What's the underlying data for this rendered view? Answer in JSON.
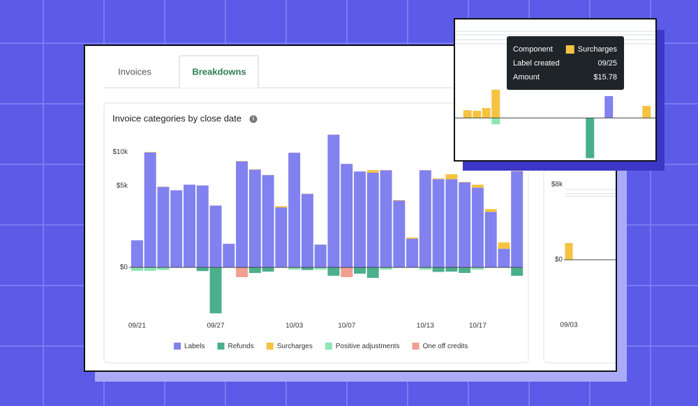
{
  "tabs": [
    "Invoices",
    "Breakdowns"
  ],
  "chart_data": [
    {
      "type": "bar",
      "title": "Invoice categories by close date",
      "stacked": true,
      "yscale": "sqrt",
      "categories": [
        "09/21",
        null,
        null,
        null,
        null,
        null,
        "09/27",
        null,
        null,
        null,
        null,
        null,
        "10/03",
        null,
        null,
        null,
        "10/07",
        null,
        null,
        null,
        null,
        null,
        "10/13",
        null,
        null,
        null,
        "10/17",
        null,
        null,
        null
      ],
      "series": [
        {
          "name": "Labels",
          "color": "#8181f0",
          "values": [
            552,
            9920,
            4871,
            4461,
            5140,
            5037,
            2870,
            420,
            8448,
            7179,
            6400,
            2692,
            9871,
            4062,
            390,
            13211,
            8040,
            6907,
            6738,
            7081,
            3363,
            619,
            7081,
            5841,
            5845,
            5438,
            4768,
            2315,
            261,
            6966
          ]
        },
        {
          "name": "Refunds",
          "color": "#4caf8c",
          "values": [
            null,
            null,
            null,
            null,
            null,
            -10,
            -1580,
            null,
            null,
            -23,
            -13,
            null,
            null,
            -5,
            null,
            -52,
            null,
            -29,
            -82,
            null,
            null,
            null,
            null,
            -15,
            -13,
            -23,
            null,
            null,
            null,
            -52
          ]
        },
        {
          "name": "Surcharges",
          "color": "#f5c342",
          "values": [
            null,
            80,
            29,
            9,
            null,
            13,
            5,
            null,
            52,
            36,
            20,
            118,
            9,
            18,
            5,
            29,
            20,
            3,
            372,
            29,
            52,
            52,
            29,
            105,
            671,
            52,
            372,
            245,
            209,
            44
          ]
        },
        {
          "name": "Positive adjustments",
          "color": "#8ee6b5",
          "values": [
            -9,
            -9,
            -5,
            null,
            null,
            null,
            null,
            null,
            null,
            null,
            null,
            null,
            -4,
            null,
            -4,
            null,
            null,
            null,
            null,
            -4,
            null,
            null,
            -4,
            null,
            null,
            null,
            -4,
            null,
            null,
            null
          ]
        },
        {
          "name": "One off credits",
          "color": "#f0a090",
          "values": [
            null,
            null,
            null,
            null,
            null,
            null,
            null,
            null,
            -71,
            null,
            null,
            null,
            null,
            null,
            null,
            null,
            -71,
            null,
            null,
            null,
            null,
            null,
            null,
            null,
            null,
            null,
            null,
            null,
            null,
            null
          ]
        }
      ],
      "ylim": [
        -2100,
        13700
      ],
      "yticks": [
        {
          "value": 0,
          "label": "$0"
        },
        {
          "value": 5000,
          "label": "$5k"
        },
        {
          "value": 10000,
          "label": "$10k"
        }
      ]
    },
    {
      "type": "bar",
      "stacked": true,
      "categories": [
        "09/03"
      ],
      "series": [
        {
          "name": "Surcharges",
          "color": "#f5c342",
          "values": [
            1780
          ]
        }
      ],
      "ylim": [
        -1000,
        8000
      ],
      "yticks": [
        {
          "value": 0,
          "label": "$0"
        },
        {
          "value": 8000,
          "label": "$8k"
        }
      ]
    },
    {
      "type": "bar",
      "stacked": true,
      "categories": [
        null,
        null,
        null,
        null,
        null,
        null,
        null,
        null,
        null,
        null,
        null,
        null,
        null,
        null,
        null,
        null,
        null,
        null,
        null,
        null,
        null
      ],
      "series": [
        {
          "name": "Labels",
          "color": "#8181f0",
          "values": [
            null,
            null,
            null,
            null,
            null,
            null,
            null,
            null,
            null,
            null,
            null,
            null,
            null,
            null,
            null,
            12.2,
            null,
            null,
            null,
            null,
            null
          ]
        },
        {
          "name": "Refunds",
          "color": "#4caf8c",
          "values": [
            null,
            null,
            null,
            null,
            null,
            null,
            null,
            null,
            null,
            null,
            null,
            null,
            null,
            -22.5,
            null,
            null,
            null,
            null,
            null,
            null,
            null
          ]
        },
        {
          "name": "Surcharges",
          "color": "#f5c342",
          "values": [
            4.3,
            4,
            5.5,
            15.78,
            null,
            null,
            null,
            null,
            null,
            null,
            null,
            null,
            null,
            null,
            null,
            null,
            null,
            null,
            null,
            6.7,
            null
          ]
        },
        {
          "name": "Positive adjustments",
          "color": "#8ee6b5",
          "values": [
            null,
            null,
            null,
            -3.6,
            null,
            null,
            null,
            null,
            null,
            null,
            null,
            null,
            null,
            null,
            null,
            null,
            null,
            null,
            null,
            null,
            null
          ]
        }
      ],
      "ylim": [
        -24,
        55
      ]
    }
  ],
  "tooltip": {
    "rows": [
      {
        "label": "Component",
        "value": "Surcharges",
        "color": "#f5c342"
      },
      {
        "label": "Label created",
        "value": "09/25"
      },
      {
        "label": "Amount",
        "value": "$15.78"
      }
    ]
  }
}
